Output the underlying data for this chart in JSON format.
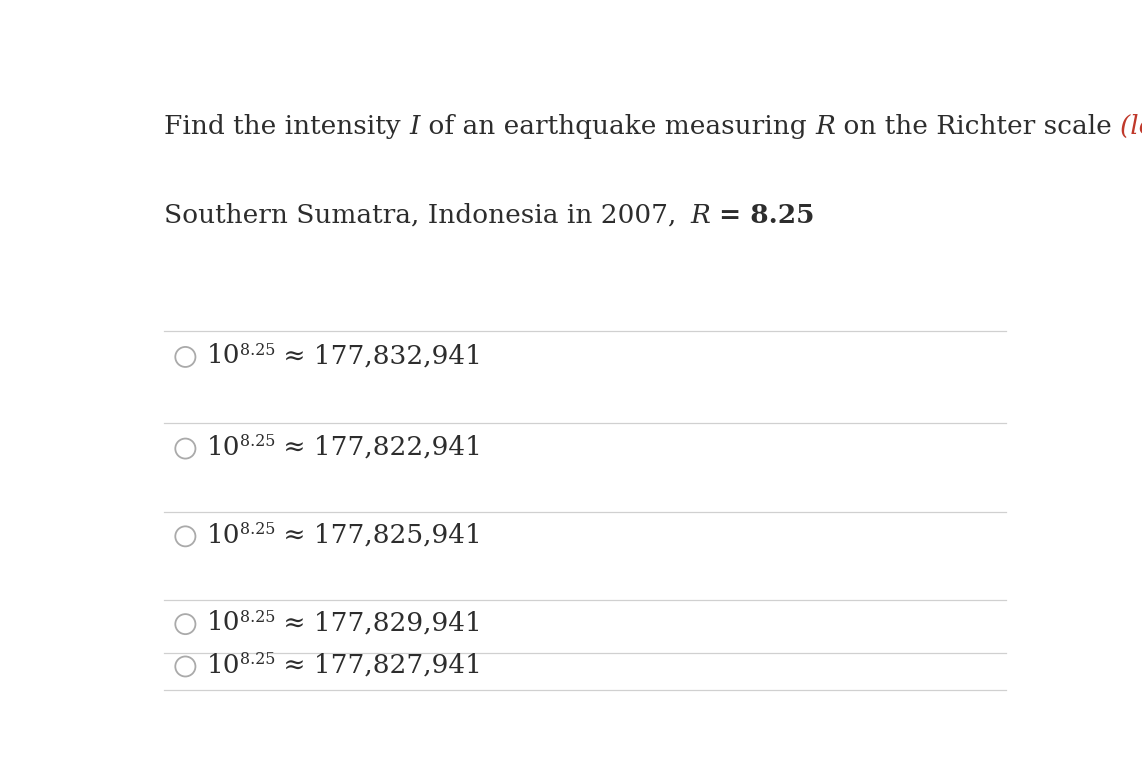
{
  "background_color": "#ffffff",
  "text_color": "#2d2d2d",
  "italic_color": "#c0392b",
  "line_color": "#d0d0d0",
  "circle_color": "#aaaaaa",
  "title_fontsize": 19,
  "subtitle_fontsize": 19,
  "option_fontsize": 19,
  "option_values": [
    "177,832,941",
    "177,822,941",
    "177,825,941",
    "177,829,941",
    "177,827,941"
  ]
}
